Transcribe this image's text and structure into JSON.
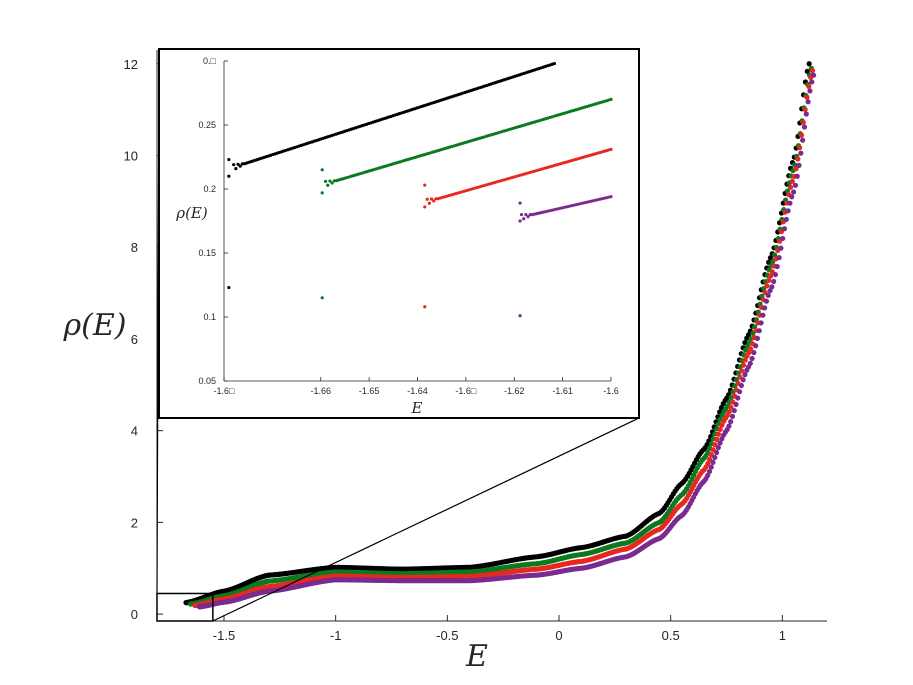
{
  "chart_data": [
    {
      "id": "main",
      "type": "scatter",
      "xlabel": "E",
      "ylabel": "ρ(E)",
      "xlim": [
        -1.8,
        1.2
      ],
      "ylim": [
        -0.15,
        12.3
      ],
      "x_ticks": [
        -1.5,
        -1,
        -0.5,
        0,
        0.5,
        1
      ],
      "x_tick_labels": [
        "-1.5",
        "-1",
        "-0.5",
        "0",
        "0.5",
        "1"
      ],
      "y_ticks": [
        0,
        2,
        4,
        6,
        8,
        10,
        12
      ],
      "y_tick_labels": [
        "0",
        "2",
        "4",
        "6",
        "8",
        "10",
        "12"
      ],
      "grid": false,
      "zoom_box": {
        "x": [
          -1.8,
          -1.55
        ],
        "y": [
          -0.15,
          0.45
        ]
      },
      "series": [
        {
          "color": "#000000",
          "x_start": -1.67,
          "x_end": 1.12,
          "knots": [
            [
              -1.67,
              0.25
            ],
            [
              -1.5,
              0.5
            ],
            [
              -1.3,
              0.85
            ],
            [
              -1.0,
              1.02
            ],
            [
              -0.7,
              0.98
            ],
            [
              -0.4,
              1.02
            ],
            [
              -0.1,
              1.25
            ],
            [
              0.1,
              1.45
            ],
            [
              0.3,
              1.7
            ],
            [
              0.45,
              2.2
            ],
            [
              0.55,
              2.85
            ],
            [
              0.65,
              3.6
            ],
            [
              0.75,
              4.7
            ],
            [
              0.85,
              6.1
            ],
            [
              0.95,
              7.8
            ],
            [
              1.05,
              9.9
            ],
            [
              1.12,
              12.0
            ]
          ]
        },
        {
          "color": "#0b7a1f",
          "x_start": -1.65,
          "x_end": 1.13,
          "knots": [
            [
              -1.65,
              0.22
            ],
            [
              -1.5,
              0.4
            ],
            [
              -1.3,
              0.72
            ],
            [
              -1.0,
              0.92
            ],
            [
              -0.7,
              0.88
            ],
            [
              -0.4,
              0.92
            ],
            [
              -0.1,
              1.1
            ],
            [
              0.1,
              1.3
            ],
            [
              0.3,
              1.55
            ],
            [
              0.45,
              2.0
            ],
            [
              0.55,
              2.6
            ],
            [
              0.65,
              3.4
            ],
            [
              0.75,
              4.5
            ],
            [
              0.85,
              5.9
            ],
            [
              0.95,
              7.6
            ],
            [
              1.05,
              9.7
            ],
            [
              1.13,
              11.9
            ]
          ]
        },
        {
          "color": "#e8281f",
          "x_start": -1.63,
          "x_end": 1.135,
          "knots": [
            [
              -1.63,
              0.19
            ],
            [
              -1.5,
              0.33
            ],
            [
              -1.3,
              0.6
            ],
            [
              -1.0,
              0.83
            ],
            [
              -0.7,
              0.8
            ],
            [
              -0.4,
              0.82
            ],
            [
              -0.1,
              0.98
            ],
            [
              0.1,
              1.15
            ],
            [
              0.3,
              1.42
            ],
            [
              0.45,
              1.85
            ],
            [
              0.55,
              2.4
            ],
            [
              0.65,
              3.15
            ],
            [
              0.75,
              4.3
            ],
            [
              0.85,
              5.7
            ],
            [
              0.95,
              7.4
            ],
            [
              1.05,
              9.5
            ],
            [
              1.135,
              11.85
            ]
          ]
        },
        {
          "color": "#7b2a8f",
          "x_start": -1.61,
          "x_end": 1.14,
          "knots": [
            [
              -1.61,
              0.16
            ],
            [
              -1.5,
              0.26
            ],
            [
              -1.3,
              0.5
            ],
            [
              -1.0,
              0.75
            ],
            [
              -0.7,
              0.73
            ],
            [
              -0.4,
              0.73
            ],
            [
              -0.1,
              0.85
            ],
            [
              0.1,
              1.0
            ],
            [
              0.3,
              1.25
            ],
            [
              0.45,
              1.65
            ],
            [
              0.55,
              2.15
            ],
            [
              0.65,
              2.9
            ],
            [
              0.75,
              4.0
            ],
            [
              0.85,
              5.4
            ],
            [
              0.95,
              7.1
            ],
            [
              1.05,
              9.2
            ],
            [
              1.14,
              11.75
            ]
          ]
        }
      ]
    },
    {
      "id": "inset",
      "type": "scatter",
      "xlabel": "E",
      "ylabel": "ρ(E)",
      "xlim": [
        -1.68,
        -1.6
      ],
      "ylim": [
        0.05,
        0.3
      ],
      "x_ticks": [
        -1.68,
        -1.66,
        -1.65,
        -1.64,
        -1.63,
        -1.62,
        -1.61,
        -1.6
      ],
      "x_tick_labels": [
        "-1.6□",
        "-1.66",
        "-1.65",
        "-1.64",
        "-1.6□",
        "-1.62",
        "-1.61",
        "-1.6"
      ],
      "y_ticks": [
        0.05,
        0.1,
        0.15,
        0.2,
        0.25,
        0.3
      ],
      "y_tick_labels": [
        "0.05",
        "0.1",
        "0.15",
        "0.2",
        "0.25",
        "0.□"
      ],
      "grid": false,
      "series": [
        {
          "color": "#000000",
          "outlier": [
            -1.679,
            0.123
          ],
          "spike_low": [
            -1.679,
            0.21
          ],
          "spike_high": [
            -1.679,
            0.223
          ],
          "start": [
            -1.678,
            0.217
          ],
          "end": [
            -1.6117,
            0.298
          ]
        },
        {
          "color": "#0b7a1f",
          "outlier": [
            -1.6597,
            0.115
          ],
          "spike_low": [
            -1.6597,
            0.197
          ],
          "spike_high": [
            -1.6597,
            0.215
          ],
          "start": [
            -1.659,
            0.204
          ],
          "end": [
            -1.6,
            0.27
          ]
        },
        {
          "color": "#e8281f",
          "outlier": [
            -1.6385,
            0.108
          ],
          "spike_low": [
            -1.6385,
            0.186
          ],
          "spike_high": [
            -1.6385,
            0.203
          ],
          "start": [
            -1.638,
            0.19
          ],
          "end": [
            -1.6,
            0.231
          ]
        },
        {
          "color": "#7b2a8f",
          "outlier": [
            -1.6188,
            0.101
          ],
          "spike_low": [
            -1.6188,
            0.175
          ],
          "spike_high": [
            -1.6188,
            0.189
          ],
          "start": [
            -1.6185,
            0.178
          ],
          "end": [
            -1.6,
            0.194
          ]
        }
      ]
    }
  ]
}
